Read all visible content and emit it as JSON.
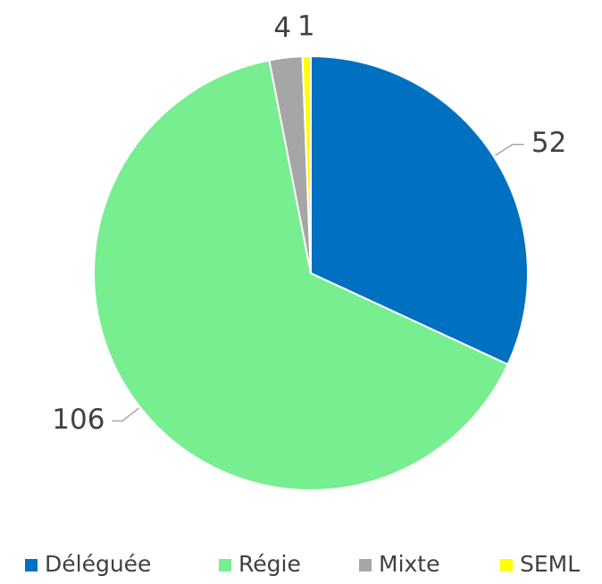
{
  "chart_data": {
    "type": "pie",
    "categories": [
      "Déléguée",
      "Régie",
      "Mixte",
      "SEML"
    ],
    "values": [
      52,
      106,
      4,
      1
    ],
    "colors": [
      "#0070c0",
      "#77ee90",
      "#a6a6a6",
      "#ffff00"
    ],
    "legend": "bottom"
  }
}
